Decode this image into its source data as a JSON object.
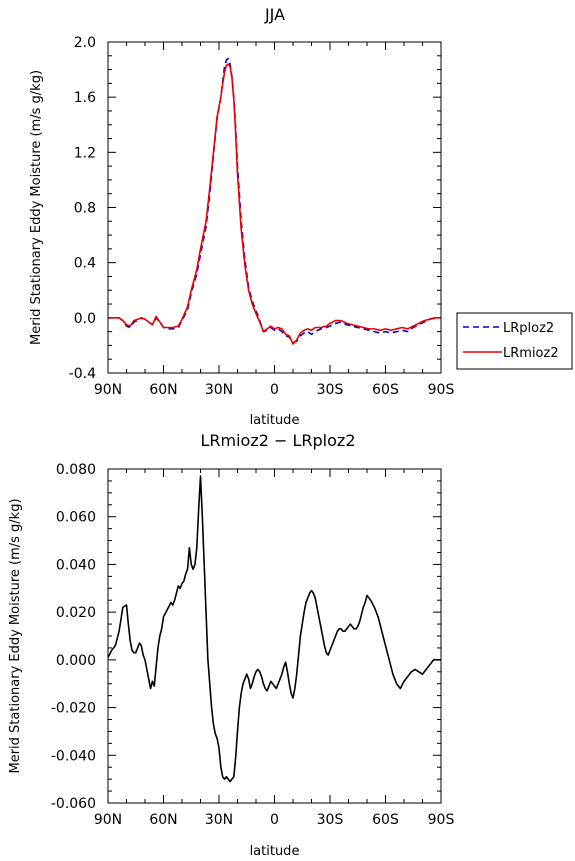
{
  "chart_data": [
    {
      "type": "line",
      "title": "JJA",
      "xlabel": "latitude",
      "ylabel": "Merid Stationary Eddy Moisture (m/s g/kg)",
      "xlim": [
        90,
        -90
      ],
      "ylim": [
        -0.4,
        2.0
      ],
      "x_ticks": [
        90,
        60,
        30,
        0,
        -30,
        -60,
        -90
      ],
      "x_tick_labels": [
        "90N",
        "60N",
        "30N",
        "0",
        "30S",
        "60S",
        "90S"
      ],
      "y_ticks": [
        -0.4,
        0.0,
        0.4,
        0.8,
        1.2,
        1.6,
        2.0
      ],
      "y_tick_labels": [
        "-0.4",
        "0.0",
        "0.4",
        "0.8",
        "1.2",
        "1.6",
        "2.0"
      ],
      "legend_position": "right, outside plot",
      "series": [
        {
          "name": "LRploz2",
          "color": "#0000cc",
          "dash": "dashed",
          "x": [
            90,
            84,
            82,
            80,
            78,
            76,
            74,
            72,
            70,
            68,
            66,
            64,
            62,
            60,
            58,
            55,
            52,
            50,
            47,
            45,
            42,
            40,
            37,
            35,
            33,
            31,
            29,
            28,
            27,
            26,
            25,
            24,
            23,
            22,
            21,
            20,
            18,
            16,
            14,
            12,
            10,
            8,
            6,
            4,
            2,
            0,
            -2,
            -4,
            -6,
            -8,
            -10,
            -12,
            -14,
            -16,
            -18,
            -20,
            -22,
            -25,
            -28,
            -30,
            -33,
            -36,
            -39,
            -42,
            -45,
            -48,
            -51,
            -54,
            -57,
            -60,
            -63,
            -66,
            -69,
            -72,
            -75,
            -78,
            -81,
            -84,
            -87,
            -90
          ],
          "y": [
            0.0,
            0.0,
            -0.02,
            -0.06,
            -0.07,
            -0.03,
            -0.02,
            0.0,
            -0.01,
            -0.03,
            -0.05,
            0.0,
            -0.03,
            -0.07,
            -0.08,
            -0.08,
            -0.07,
            -0.02,
            0.06,
            0.18,
            0.32,
            0.46,
            0.66,
            0.9,
            1.18,
            1.45,
            1.6,
            1.72,
            1.82,
            1.87,
            1.88,
            1.84,
            1.75,
            1.6,
            1.38,
            1.1,
            0.7,
            0.42,
            0.22,
            0.12,
            0.05,
            -0.02,
            -0.1,
            -0.09,
            -0.07,
            -0.09,
            -0.08,
            -0.1,
            -0.13,
            -0.14,
            -0.18,
            -0.17,
            -0.13,
            -0.11,
            -0.1,
            -0.12,
            -0.1,
            -0.08,
            -0.07,
            -0.06,
            -0.04,
            -0.03,
            -0.05,
            -0.06,
            -0.07,
            -0.08,
            -0.09,
            -0.1,
            -0.11,
            -0.1,
            -0.11,
            -0.1,
            -0.09,
            -0.1,
            -0.07,
            -0.05,
            -0.03,
            -0.01,
            0.0,
            0.0
          ]
        },
        {
          "name": "LRmioz2",
          "color": "#ee0000",
          "dash": "solid",
          "x": [
            90,
            84,
            82,
            80,
            78,
            76,
            74,
            72,
            70,
            68,
            66,
            64,
            62,
            60,
            58,
            55,
            52,
            50,
            47,
            45,
            42,
            40,
            37,
            35,
            33,
            31,
            29,
            28,
            27,
            26,
            25,
            24,
            23,
            22,
            21,
            20,
            18,
            16,
            14,
            12,
            10,
            8,
            6,
            4,
            2,
            0,
            -2,
            -4,
            -6,
            -8,
            -10,
            -12,
            -14,
            -16,
            -18,
            -20,
            -22,
            -25,
            -28,
            -30,
            -33,
            -36,
            -39,
            -42,
            -45,
            -48,
            -51,
            -54,
            -57,
            -60,
            -63,
            -66,
            -69,
            -72,
            -75,
            -78,
            -81,
            -84,
            -87,
            -90
          ],
          "y": [
            0.0,
            0.0,
            -0.02,
            -0.05,
            -0.06,
            -0.02,
            -0.01,
            0.0,
            -0.01,
            -0.03,
            -0.05,
            0.01,
            -0.03,
            -0.07,
            -0.07,
            -0.07,
            -0.06,
            -0.01,
            0.08,
            0.2,
            0.35,
            0.5,
            0.7,
            0.94,
            1.2,
            1.46,
            1.6,
            1.7,
            1.78,
            1.83,
            1.84,
            1.82,
            1.74,
            1.58,
            1.34,
            1.04,
            0.64,
            0.38,
            0.2,
            0.1,
            0.03,
            -0.03,
            -0.1,
            -0.08,
            -0.06,
            -0.08,
            -0.07,
            -0.08,
            -0.12,
            -0.13,
            -0.19,
            -0.16,
            -0.11,
            -0.09,
            -0.08,
            -0.09,
            -0.07,
            -0.07,
            -0.06,
            -0.04,
            -0.02,
            -0.02,
            -0.04,
            -0.05,
            -0.06,
            -0.07,
            -0.08,
            -0.08,
            -0.09,
            -0.08,
            -0.09,
            -0.08,
            -0.07,
            -0.08,
            -0.06,
            -0.04,
            -0.02,
            -0.01,
            0.0,
            0.0
          ]
        }
      ]
    },
    {
      "type": "line",
      "title": "LRmioz2 − LRploz2",
      "xlabel": "latitude",
      "ylabel": "Merid Stationary Eddy Moisture (m/s g/kg)",
      "xlim": [
        90,
        -90
      ],
      "ylim": [
        -0.06,
        0.08
      ],
      "x_ticks": [
        90,
        60,
        30,
        0,
        -30,
        -60,
        -90
      ],
      "x_tick_labels": [
        "90N",
        "60N",
        "30N",
        "0",
        "30S",
        "60S",
        "90S"
      ],
      "y_ticks": [
        -0.06,
        -0.04,
        -0.02,
        0.0,
        0.02,
        0.04,
        0.06,
        0.08
      ],
      "y_tick_labels": [
        "-0.060",
        "-0.040",
        "-0.020",
        "0.000",
        "0.020",
        "0.040",
        "0.060",
        "0.080"
      ],
      "series": [
        {
          "color": "#000000",
          "dash": "solid",
          "x": [
            90,
            88,
            86,
            84,
            82,
            80,
            79,
            78,
            77,
            76,
            75,
            74,
            73,
            72,
            71,
            70,
            69,
            68,
            67,
            66,
            65,
            64,
            63,
            62,
            61,
            60,
            58,
            56,
            55,
            54,
            53,
            52,
            51,
            50,
            49,
            48,
            47,
            46,
            45,
            44,
            43,
            42,
            41,
            40,
            39,
            38,
            37,
            36,
            35,
            34,
            33,
            32,
            31,
            30,
            29,
            28,
            27,
            26,
            25,
            24,
            23,
            22,
            21,
            20,
            19,
            18,
            17,
            16,
            15,
            14,
            13,
            12,
            11,
            10,
            9,
            8,
            7,
            6,
            5,
            4,
            3,
            2,
            1,
            0,
            -1,
            -2,
            -3,
            -4,
            -5,
            -6,
            -7,
            -8,
            -9,
            -10,
            -11,
            -12,
            -13,
            -14,
            -15,
            -16,
            -17,
            -18,
            -19,
            -20,
            -21,
            -22,
            -23,
            -24,
            -25,
            -26,
            -27,
            -28,
            -29,
            -30,
            -31,
            -32,
            -33,
            -34,
            -35,
            -36,
            -37,
            -38,
            -39,
            -40,
            -41,
            -42,
            -43,
            -44,
            -45,
            -46,
            -47,
            -48,
            -49,
            -50,
            -52,
            -54,
            -56,
            -58,
            -60,
            -62,
            -64,
            -66,
            -68,
            -70,
            -72,
            -74,
            -76,
            -78,
            -80,
            -82,
            -84,
            -86,
            -88,
            -90
          ],
          "y": [
            0.001,
            0.004,
            0.006,
            0.012,
            0.022,
            0.023,
            0.015,
            0.008,
            0.004,
            0.003,
            0.003,
            0.005,
            0.007,
            0.006,
            0.002,
            0.0,
            -0.004,
            -0.008,
            -0.012,
            -0.009,
            -0.011,
            -0.003,
            0.005,
            0.01,
            0.013,
            0.018,
            0.021,
            0.024,
            0.023,
            0.025,
            0.028,
            0.031,
            0.03,
            0.032,
            0.033,
            0.036,
            0.038,
            0.047,
            0.04,
            0.038,
            0.04,
            0.047,
            0.063,
            0.077,
            0.06,
            0.04,
            0.02,
            0.0,
            -0.01,
            -0.02,
            -0.027,
            -0.031,
            -0.033,
            -0.037,
            -0.045,
            -0.049,
            -0.05,
            -0.049,
            -0.05,
            -0.051,
            -0.05,
            -0.049,
            -0.041,
            -0.03,
            -0.02,
            -0.014,
            -0.01,
            -0.008,
            -0.006,
            -0.008,
            -0.012,
            -0.01,
            -0.007,
            -0.005,
            -0.004,
            -0.005,
            -0.007,
            -0.01,
            -0.012,
            -0.013,
            -0.011,
            -0.009,
            -0.01,
            -0.011,
            -0.012,
            -0.01,
            -0.008,
            -0.006,
            -0.003,
            -0.001,
            -0.005,
            -0.01,
            -0.014,
            -0.016,
            -0.012,
            -0.006,
            0.002,
            0.01,
            0.015,
            0.02,
            0.024,
            0.026,
            0.028,
            0.029,
            0.028,
            0.026,
            0.022,
            0.018,
            0.014,
            0.01,
            0.006,
            0.003,
            0.002,
            0.004,
            0.006,
            0.008,
            0.01,
            0.012,
            0.013,
            0.013,
            0.012,
            0.012,
            0.013,
            0.014,
            0.015,
            0.014,
            0.013,
            0.013,
            0.014,
            0.016,
            0.019,
            0.022,
            0.024,
            0.027,
            0.025,
            0.022,
            0.018,
            0.012,
            0.006,
            0.0,
            -0.006,
            -0.01,
            -0.012,
            -0.009,
            -0.007,
            -0.005,
            -0.004,
            -0.005,
            -0.006,
            -0.004,
            -0.002,
            0.0,
            0.0,
            0.0
          ]
        }
      ]
    }
  ]
}
